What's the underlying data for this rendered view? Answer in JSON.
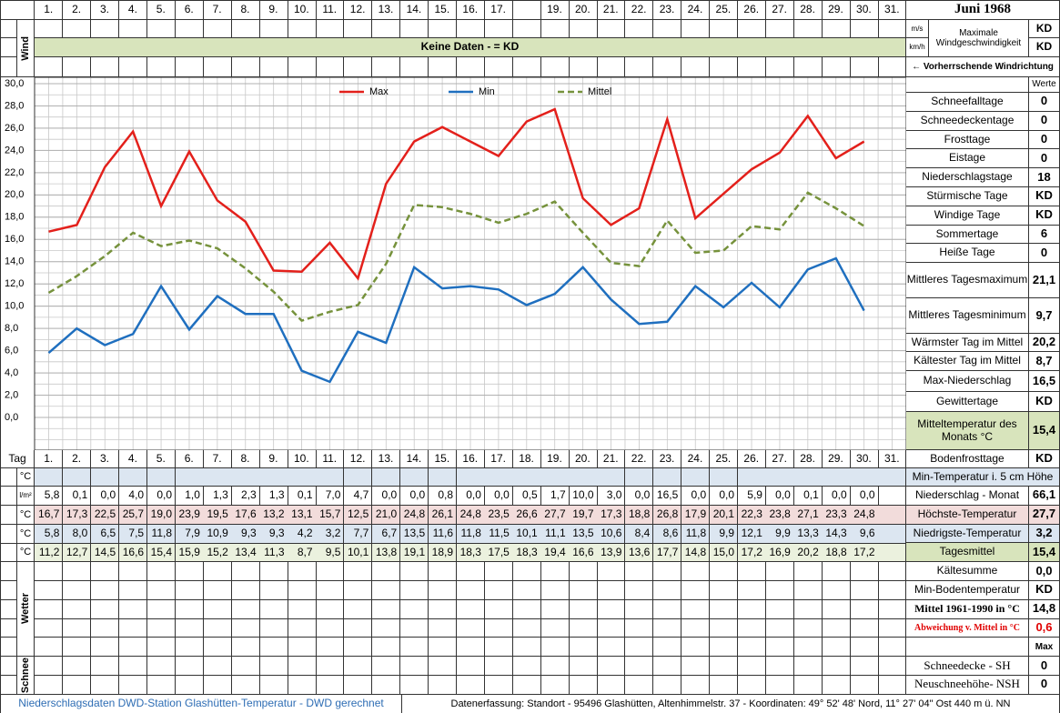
{
  "header": {
    "title": "Juni 1968",
    "wind_label": "Wind",
    "no_data": "Keine Daten -  = KD",
    "wind_units": [
      "m/s",
      "km/h"
    ],
    "wind_max_label": "Maximale Windgeschwindigkeit",
    "wind_values": [
      "KD",
      "KD"
    ],
    "wind_direction": "← Vorherrschende Windrichtung",
    "values_header": "Werte"
  },
  "top_days": [
    "1.",
    "2.",
    "3.",
    "4.",
    "5.",
    "6.",
    "7.",
    "8.",
    "9.",
    "10.",
    "11.",
    "12.",
    "13.",
    "14.",
    "15.",
    "16.",
    "17.",
    null,
    "19.",
    "20.",
    "21.",
    "22.",
    "23.",
    "24.",
    "25.",
    "26.",
    "27.",
    "28.",
    "29.",
    "30.",
    "31."
  ],
  "chart_data": {
    "type": "line",
    "categories": [
      "1.",
      "2.",
      "3.",
      "4.",
      "5.",
      "6.",
      "7.",
      "8.",
      "9.",
      "10.",
      "11.",
      "12.",
      "13.",
      "14.",
      "15.",
      "16.",
      "17.",
      "18.",
      "19.",
      "20.",
      "21.",
      "22.",
      "23.",
      "24.",
      "25.",
      "26.",
      "27.",
      "28.",
      "29.",
      "30.",
      "31."
    ],
    "series": [
      {
        "name": "Max",
        "color": "#e3201b",
        "style": "solid",
        "values": [
          16.7,
          17.3,
          22.5,
          25.7,
          19.0,
          23.9,
          19.5,
          17.6,
          13.2,
          13.1,
          15.7,
          12.5,
          21.0,
          24.8,
          26.1,
          24.8,
          23.5,
          26.6,
          27.7,
          19.7,
          17.3,
          18.8,
          26.8,
          17.9,
          20.1,
          22.3,
          23.8,
          27.1,
          23.3,
          24.8,
          null
        ],
        "value_labels": [
          "16,7",
          "17,3",
          "22,5",
          "25,7",
          "19,0",
          "23,9",
          "19,5",
          "17,6",
          "13,2",
          "13,1",
          "15,7",
          "12,5",
          "21,0",
          "24,8",
          "26,1",
          "24,8",
          "23,5",
          "26,6",
          "27,7",
          "19,7",
          "17,3",
          "18,8",
          "26,8",
          "17,9",
          "20,1",
          "22,3",
          "23,8",
          "27,1",
          "23,3",
          "24,8",
          null
        ]
      },
      {
        "name": "Min",
        "color": "#1f6fbf",
        "style": "solid",
        "values": [
          5.8,
          8.0,
          6.5,
          7.5,
          11.8,
          7.9,
          10.9,
          9.3,
          9.3,
          4.2,
          3.2,
          7.7,
          6.7,
          13.5,
          11.6,
          11.8,
          11.5,
          10.1,
          11.1,
          13.5,
          10.6,
          8.4,
          8.6,
          11.8,
          9.9,
          12.1,
          9.9,
          13.3,
          14.3,
          9.6,
          null
        ],
        "value_labels": [
          "5,8",
          "8,0",
          "6,5",
          "7,5",
          "11,8",
          "7,9",
          "10,9",
          "9,3",
          "9,3",
          "4,2",
          "3,2",
          "7,7",
          "6,7",
          "13,5",
          "11,6",
          "11,8",
          "11,5",
          "10,1",
          "11,1",
          "13,5",
          "10,6",
          "8,4",
          "8,6",
          "11,8",
          "9,9",
          "12,1",
          "9,9",
          "13,3",
          "14,3",
          "9,6",
          null
        ]
      },
      {
        "name": "Mittel",
        "color": "#76923c",
        "style": "dashed",
        "values": [
          11.2,
          12.7,
          14.5,
          16.6,
          15.4,
          15.9,
          15.2,
          13.4,
          11.3,
          8.7,
          9.5,
          10.1,
          13.8,
          19.1,
          18.9,
          18.3,
          17.5,
          18.3,
          19.4,
          16.6,
          13.9,
          13.6,
          17.7,
          14.8,
          15.0,
          17.2,
          16.9,
          20.2,
          18.8,
          17.2,
          null
        ],
        "value_labels": [
          "11,2",
          "12,7",
          "14,5",
          "16,6",
          "15,4",
          "15,9",
          "15,2",
          "13,4",
          "11,3",
          "8,7",
          "9,5",
          "10,1",
          "13,8",
          "19,1",
          "18,9",
          "18,3",
          "17,5",
          "18,3",
          "19,4",
          "16,6",
          "13,9",
          "13,6",
          "17,7",
          "14,8",
          "15,0",
          "17,2",
          "16,9",
          "20,2",
          "18,8",
          "17,2",
          null
        ]
      }
    ],
    "ylim": [
      0,
      30
    ],
    "yticks": [
      {
        "value": 0,
        "label": "0,0"
      },
      {
        "value": 2,
        "label": "2,0"
      },
      {
        "value": 4,
        "label": "4,0"
      },
      {
        "value": 6,
        "label": "6,0"
      },
      {
        "value": 8,
        "label": "8,0"
      },
      {
        "value": 10,
        "label": "10,0"
      },
      {
        "value": 12,
        "label": "12,0"
      },
      {
        "value": 14,
        "label": "14,0"
      },
      {
        "value": 16,
        "label": "16,0"
      },
      {
        "value": 18,
        "label": "18,0"
      },
      {
        "value": 20,
        "label": "20,0"
      },
      {
        "value": 22,
        "label": "22,0"
      },
      {
        "value": 24,
        "label": "24,0"
      },
      {
        "value": 26,
        "label": "26,0"
      },
      {
        "value": 28,
        "label": "28,0"
      },
      {
        "value": 30,
        "label": "30,0"
      }
    ],
    "grid": true,
    "legend": "top"
  },
  "table": {
    "day_label": "Tag",
    "units": [
      "°C",
      "l/m²",
      "°C",
      "°C",
      "°C"
    ],
    "precipitation": [
      "5,8",
      "0,1",
      "0,0",
      "4,0",
      "0,0",
      "1,0",
      "1,3",
      "2,3",
      "1,3",
      "0,1",
      "7,0",
      "4,7",
      "0,0",
      "0,0",
      "0,8",
      "0,0",
      "0,0",
      "0,5",
      "1,7",
      "10,0",
      "3,0",
      "0,0",
      "16,5",
      "0,0",
      "0,0",
      "5,9",
      "0,0",
      "0,1",
      "0,0",
      "0,0",
      null
    ],
    "weather_label": "Wetter",
    "snow_label": "Schnee",
    "min5cm_label": "Min-Temperatur i. 5 cm Höhe"
  },
  "stats": [
    {
      "label": "Schneefalltage",
      "value": "0"
    },
    {
      "label": "Schneedeckentage",
      "value": "0"
    },
    {
      "label": "Frosttage",
      "value": "0"
    },
    {
      "label": "Eistage",
      "value": "0"
    },
    {
      "label": "Niederschlagstage",
      "value": "18"
    },
    {
      "label": "Stürmische Tage",
      "value": "KD"
    },
    {
      "label": "Windige Tage",
      "value": "KD"
    },
    {
      "label": "Sommertage",
      "value": "6"
    },
    {
      "label": "Heiße Tage",
      "value": "0"
    },
    {
      "label": "Mittleres Tagesmaximum",
      "value": "21,1"
    },
    {
      "label": "Mittleres Tagesminimum",
      "value": "9,7"
    },
    {
      "label": "Wärmster Tag im Mittel",
      "value": "20,2"
    },
    {
      "label": "Kältester Tag im Mittel",
      "value": "8,7"
    },
    {
      "label": "Max-Niederschlag",
      "value": "16,5"
    },
    {
      "label": "Gewittertage",
      "value": "KD"
    },
    {
      "label": "Mitteltemperatur des Monats °C",
      "value": "15,4"
    },
    {
      "label": "Bodenfrosttage",
      "value": "KD"
    }
  ],
  "summary": [
    {
      "label": "Niederschlag - Monat",
      "value": "66,1"
    },
    {
      "label": "Höchste-Temperatur",
      "value": "27,7"
    },
    {
      "label": "Niedrigste-Temperatur",
      "value": "3,2"
    },
    {
      "label": "Tagesmittel",
      "value": "15,4"
    },
    {
      "label": "Kältesumme",
      "value": "0,0"
    },
    {
      "label": "Min-Bodentemperatur",
      "value": "KD"
    },
    {
      "label": "Mittel 1961-1990 in °C",
      "value": "14,8"
    },
    {
      "label": "Abweichung v. Mittel in °C",
      "value": "0,6"
    },
    {
      "label": null,
      "value": "Max"
    },
    {
      "label": "Schneedecke -  SH",
      "value": "0"
    },
    {
      "label": "Neuschneehöhe- NSH",
      "value": "0"
    }
  ],
  "footer": {
    "left": "Niederschlagsdaten DWD-Station Glashütten-Temperatur -  DWD gerechnet",
    "right": "Datenerfassung: Standort -  95496 Glashütten, Altenhimmelstr. 37 - Koordinaten:  49° 52' 48' Nord,  11° 27' 04\" Ost  440 m ü. NN"
  }
}
